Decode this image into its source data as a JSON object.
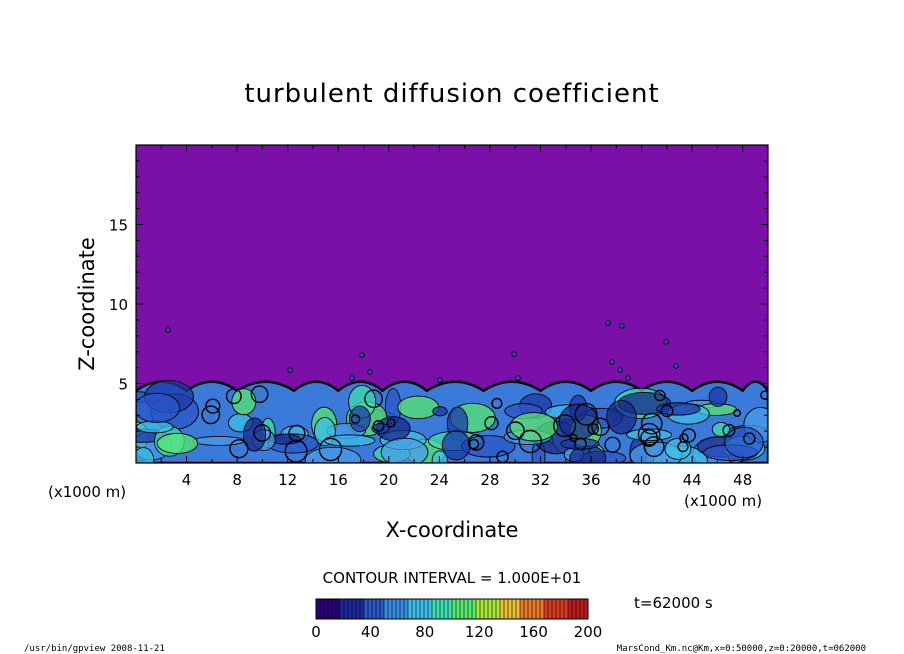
{
  "chart_data": {
    "type": "heatmap",
    "title": "turbulent diffusion coefficient",
    "xlabel": "X-coordinate",
    "ylabel": "Z-coordinate",
    "x_unit_left": "(x1000 m)",
    "x_unit_right": "(x1000 m)",
    "xlim": [
      0,
      50
    ],
    "ylim": [
      0,
      20
    ],
    "xticks": [
      4,
      8,
      12,
      16,
      20,
      24,
      28,
      32,
      36,
      40,
      44,
      48
    ],
    "yticks": [
      5,
      10,
      15
    ],
    "contour_interval_label": "CONTOUR INTERVAL = 1.000E+01",
    "time_label": "t=62000 s",
    "colorbar": {
      "min": 0,
      "max": 200,
      "ticks": [
        0,
        40,
        80,
        120,
        160,
        200
      ],
      "colors": [
        "#2a007a",
        "#1c2a9a",
        "#2a58c8",
        "#3a8ee0",
        "#3cc0e8",
        "#3ee0b0",
        "#58e870",
        "#a8e838",
        "#e8c030",
        "#e87828",
        "#d83c24",
        "#b81c1c"
      ]
    },
    "background_color": "#7a10a8",
    "turbulent_layer_top_km": 4.8,
    "footer_left": "/usr/bin/gpview   2008-11-21",
    "footer_right": "MarsCond_Km.nc@Km,x=0:50000,z=0:20000,t=062000"
  }
}
